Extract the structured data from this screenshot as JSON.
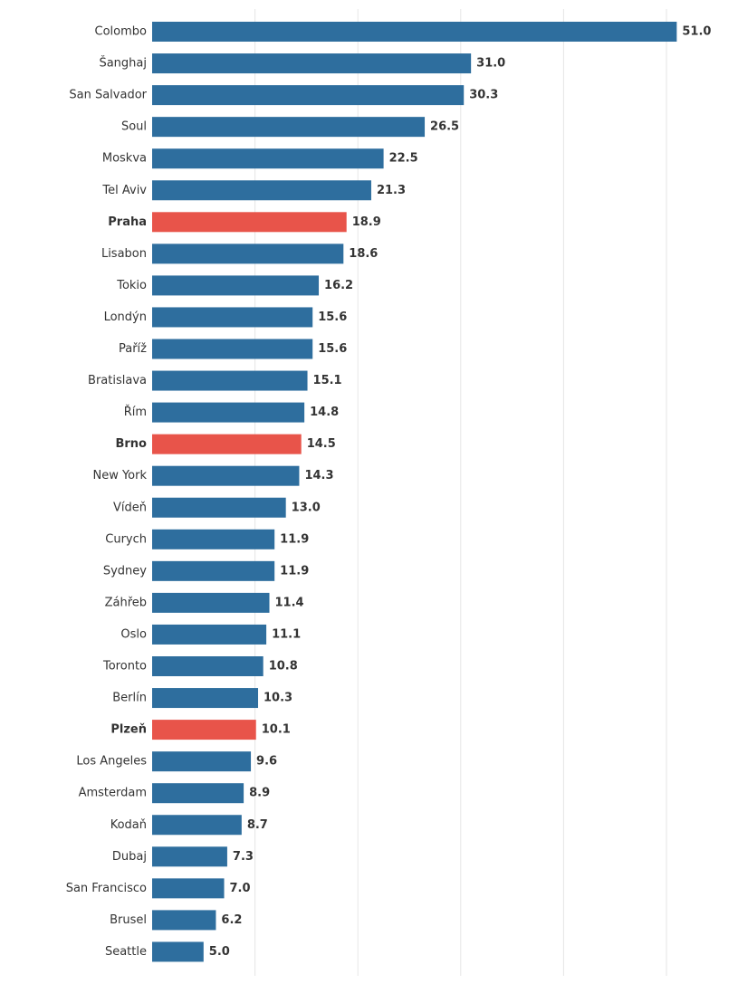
{
  "chart_data": {
    "type": "bar",
    "orientation": "horizontal",
    "title": "",
    "xlabel": "",
    "ylabel": "",
    "xlim": [
      0,
      56
    ],
    "grid": true,
    "grid_ticks": [
      10,
      20,
      30,
      40,
      50
    ],
    "categories": [
      "Colombo",
      "Šanghaj",
      "San Salvador",
      "Soul",
      "Moskva",
      "Tel Aviv",
      "Praha",
      "Lisabon",
      "Tokio",
      "Londýn",
      "Paříž",
      "Bratislava",
      "Řím",
      "Brno",
      "New York",
      "Vídeň",
      "Curych",
      "Sydney",
      "Záhřeb",
      "Oslo",
      "Toronto",
      "Berlín",
      "Plzeň",
      "Los Angeles",
      "Amsterdam",
      "Kodaň",
      "Dubaj",
      "San Francisco",
      "Brusel",
      "Seattle"
    ],
    "values": [
      51.0,
      31.0,
      30.3,
      26.5,
      22.5,
      21.3,
      18.9,
      18.6,
      16.2,
      15.6,
      15.6,
      15.1,
      14.8,
      14.5,
      14.3,
      13.0,
      11.9,
      11.9,
      11.4,
      11.1,
      10.8,
      10.3,
      10.1,
      9.6,
      8.9,
      8.7,
      7.3,
      7.0,
      6.2,
      5.0
    ],
    "value_labels": [
      "51.0",
      "31.0",
      "30.3",
      "26.5",
      "22.5",
      "21.3",
      "18.9",
      "18.6",
      "16.2",
      "15.6",
      "15.6",
      "15.1",
      "14.8",
      "14.5",
      "14.3",
      "13.0",
      "11.9",
      "11.9",
      "11.4",
      "11.1",
      "10.8",
      "10.3",
      "10.1",
      "9.6",
      "8.9",
      "8.7",
      "7.3",
      "7.0",
      "6.2",
      "5.0"
    ],
    "highlighted": [
      "Praha",
      "Brno",
      "Plzeň"
    ]
  },
  "colors": {
    "bar_default": "#2e6e9e",
    "bar_highlight": "#e8544a",
    "label_default": "#333333",
    "label_highlight": "#e8544a",
    "grid": "#e6e6e6"
  }
}
